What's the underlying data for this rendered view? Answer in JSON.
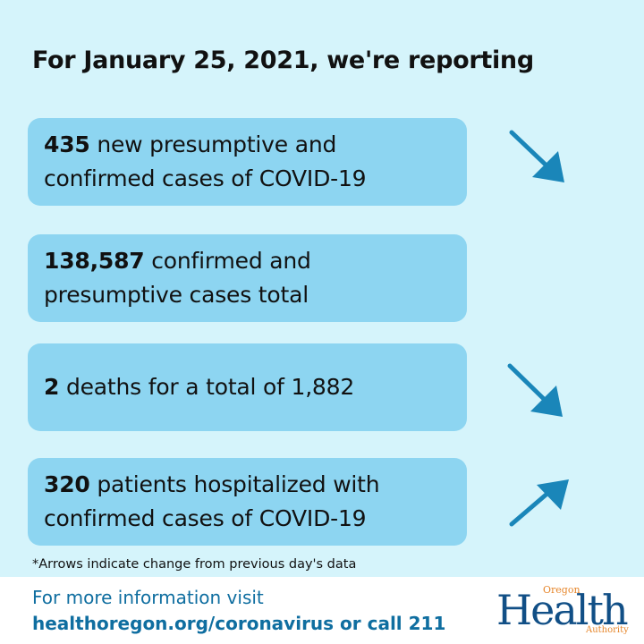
{
  "title": "For January 25, 2021, we're reporting",
  "cards": [
    {
      "bold": "435",
      "line1_rest": " new presumptive and",
      "line2": "confirmed cases of COVID-19",
      "arrow": "down"
    },
    {
      "bold": "138,587",
      "line1_rest": " confirmed and",
      "line2": "presumptive cases total",
      "arrow": "none"
    },
    {
      "bold": "2",
      "line1_rest": " deaths for a total of 1,882",
      "line2": "",
      "arrow": "down"
    },
    {
      "bold": "320",
      "line1_rest": " patients hospitalized with",
      "line2": "confirmed cases of COVID-19",
      "arrow": "up"
    }
  ],
  "footnote": "*Arrows indicate change from previous day's data",
  "footer": {
    "line1": "For more information visit",
    "line2": "healthoregon.org/coronavirus or call 211"
  },
  "logo": {
    "main": "Health",
    "top": "Oregon",
    "bottom": "Authority"
  },
  "colors": {
    "background": "#d5f4fb",
    "card": "#8dd5f1",
    "arrow": "#1a86b9",
    "footer_text": "#0f6ea0",
    "logo_blue": "#114f86",
    "logo_orange": "#e6862b"
  },
  "icons": [
    "arrow-down-right-icon",
    "arrow-down-right-icon",
    "arrow-up-right-icon"
  ]
}
